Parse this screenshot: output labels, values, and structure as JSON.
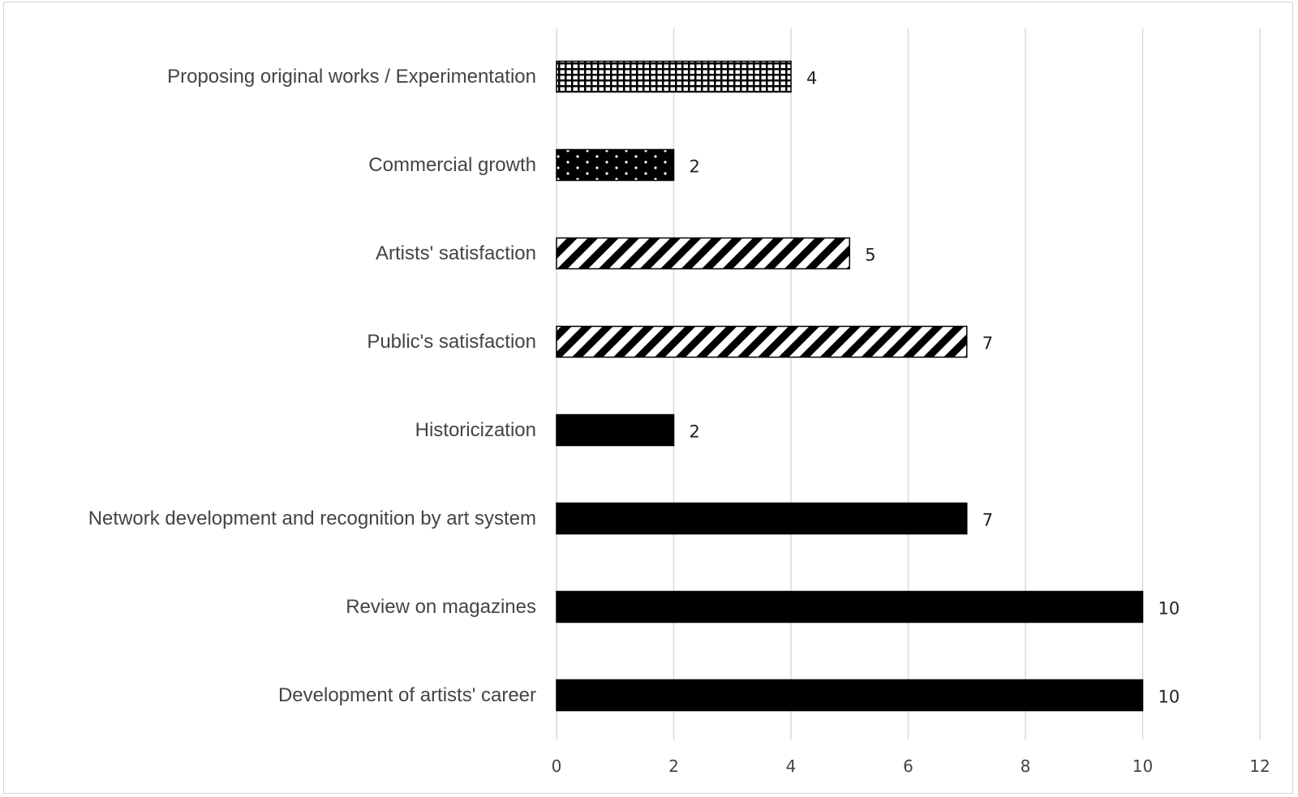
{
  "chart_data": {
    "type": "bar",
    "orientation": "horizontal",
    "title": "",
    "xlabel": "",
    "ylabel": "",
    "categories": [
      "Development of artists' career",
      "Review on magazines",
      "Network development and recognition by art system",
      "Historicization",
      "Public's satisfaction",
      "Artists' satisfaction",
      "Commercial growth",
      "Proposing original works / Experimentation"
    ],
    "values": [
      10,
      10,
      7,
      2,
      7,
      5,
      2,
      4
    ],
    "fill_patterns": [
      "solid",
      "solid",
      "solid",
      "solid",
      "diagonal-stripes",
      "diagonal-stripes",
      "dots-on-black",
      "grid"
    ],
    "xlim": [
      0,
      12
    ],
    "ticks": [
      0,
      2,
      4,
      6,
      8,
      10,
      12
    ],
    "grid": "vertical",
    "data_labels": true,
    "legend": "none",
    "colors": {
      "bar": "#000000",
      "grid": "#d9d9d9",
      "text": "#444444"
    }
  }
}
